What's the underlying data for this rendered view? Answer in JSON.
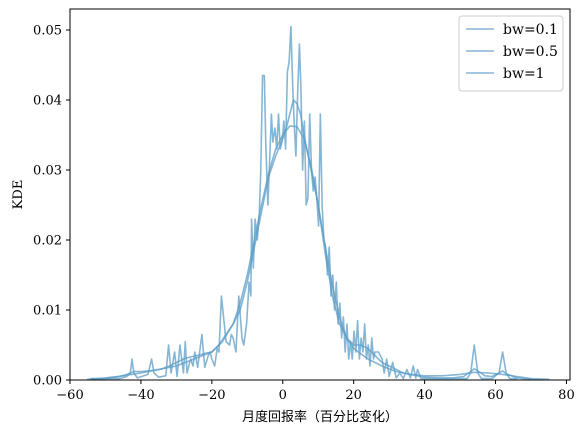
{
  "chart_data": {
    "type": "line",
    "xlabel": "月度回报率（百分比变化）",
    "ylabel": "KDE",
    "xlim": [
      -60,
      81
    ],
    "ylim": [
      0,
      0.053
    ],
    "xticks": [
      -60,
      -40,
      -20,
      0,
      20,
      40,
      60,
      80
    ],
    "yticks": [
      0.0,
      0.01,
      0.02,
      0.03,
      0.04,
      0.05
    ],
    "ytick_labels": [
      "0.00",
      "0.01",
      "0.02",
      "0.03",
      "0.04",
      "0.05"
    ],
    "legend_position": "top-right",
    "line_color": "#5d9ec7",
    "series": [
      {
        "name": "bw=0.1",
        "points": [
          [
            -54,
            0.0002
          ],
          [
            -46,
            0.0002
          ],
          [
            -44,
            0.0005
          ],
          [
            -43,
            0.001
          ],
          [
            -42.5,
            0.003
          ],
          [
            -42,
            0.001
          ],
          [
            -41,
            0.0003
          ],
          [
            -38,
            0.0008
          ],
          [
            -37,
            0.003
          ],
          [
            -36.3,
            0.001
          ],
          [
            -35,
            0.0004
          ],
          [
            -33,
            0.0006
          ],
          [
            -32.2,
            0.005
          ],
          [
            -31.5,
            0.001
          ],
          [
            -30.5,
            0.004
          ],
          [
            -29.8,
            0.0005
          ],
          [
            -29,
            0.005
          ],
          [
            -28,
            0.001
          ],
          [
            -27.5,
            0.0055
          ],
          [
            -27,
            0.001
          ],
          [
            -26,
            0.003
          ],
          [
            -25.3,
            0.002
          ],
          [
            -24.8,
            0.004
          ],
          [
            -24,
            0.0018
          ],
          [
            -22.8,
            0.0065
          ],
          [
            -22,
            0.0018
          ],
          [
            -21,
            0.0035
          ],
          [
            -20.5,
            0.004
          ],
          [
            -20,
            0.003
          ],
          [
            -19.2,
            0.002
          ],
          [
            -18.5,
            0.0045
          ],
          [
            -18,
            0.004
          ],
          [
            -17.3,
            0.012
          ],
          [
            -16.5,
            0.008
          ],
          [
            -16,
            0.0055
          ],
          [
            -15,
            0.005
          ],
          [
            -14.5,
            0.0065
          ],
          [
            -14,
            0.006
          ],
          [
            -13.2,
            0.004
          ],
          [
            -12.4,
            0.012
          ],
          [
            -11.5,
            0.006
          ],
          [
            -11,
            0.005
          ],
          [
            -10.2,
            0.008
          ],
          [
            -9.5,
            0.014
          ],
          [
            -9,
            0.012
          ],
          [
            -8.8,
            0.023
          ],
          [
            -8.3,
            0.016
          ],
          [
            -7.8,
            0.023
          ],
          [
            -7.2,
            0.02
          ],
          [
            -6.6,
            0.024
          ],
          [
            -6.2,
            0.03
          ],
          [
            -5.7,
            0.0435
          ],
          [
            -5.2,
            0.0435
          ],
          [
            -4.8,
            0.034
          ],
          [
            -4.2,
            0.025
          ],
          [
            -3.8,
            0.03
          ],
          [
            -3.2,
            0.038
          ],
          [
            -2.8,
            0.034
          ],
          [
            -2.2,
            0.036
          ],
          [
            -1.7,
            0.033
          ],
          [
            -1.2,
            0.038
          ],
          [
            -0.7,
            0.033
          ],
          [
            -0.2,
            0.034
          ],
          [
            0.3,
            0.037
          ],
          [
            0.8,
            0.033
          ],
          [
            1.3,
            0.044
          ],
          [
            1.8,
            0.0455
          ],
          [
            2.3,
            0.0505
          ],
          [
            2.8,
            0.042
          ],
          [
            3.2,
            0.037
          ],
          [
            3.7,
            0.032
          ],
          [
            4.2,
            0.041
          ],
          [
            4.7,
            0.048
          ],
          [
            5.1,
            0.042
          ],
          [
            5.6,
            0.03
          ],
          [
            6.1,
            0.037
          ],
          [
            6.6,
            0.025
          ],
          [
            7.1,
            0.026
          ],
          [
            7.6,
            0.038
          ],
          [
            8.1,
            0.03
          ],
          [
            8.6,
            0.027
          ],
          [
            9.1,
            0.029
          ],
          [
            9.6,
            0.026
          ],
          [
            10.1,
            0.022
          ],
          [
            10.6,
            0.038
          ],
          [
            11.1,
            0.025
          ],
          [
            11.6,
            0.02
          ],
          [
            12.1,
            0.019
          ],
          [
            12.6,
            0.015
          ],
          [
            13.1,
            0.019
          ],
          [
            13.6,
            0.012
          ],
          [
            14.1,
            0.015
          ],
          [
            14.6,
            0.01
          ],
          [
            15.1,
            0.014
          ],
          [
            15.6,
            0.008
          ],
          [
            16.1,
            0.011
          ],
          [
            16.6,
            0.006
          ],
          [
            17.1,
            0.009
          ],
          [
            17.6,
            0.004
          ],
          [
            18.1,
            0.008
          ],
          [
            18.6,
            0.003
          ],
          [
            19.1,
            0.0055
          ],
          [
            19.6,
            0.003
          ],
          [
            20.1,
            0.007
          ],
          [
            20.6,
            0.004
          ],
          [
            21.1,
            0.0085
          ],
          [
            21.6,
            0.003
          ],
          [
            22.1,
            0.006
          ],
          [
            22.6,
            0.004
          ],
          [
            23.1,
            0.008
          ],
          [
            23.6,
            0.003
          ],
          [
            24.1,
            0.005
          ],
          [
            24.6,
            0.002
          ],
          [
            25.1,
            0.006
          ],
          [
            25.6,
            0.003
          ],
          [
            26,
            0.004
          ],
          [
            27,
            0.004
          ],
          [
            28,
            0.003
          ],
          [
            28.6,
            0.001
          ],
          [
            29.3,
            0.003
          ],
          [
            30,
            0.0005
          ],
          [
            31,
            0.0025
          ],
          [
            32,
            0.0003
          ],
          [
            33,
            0.001
          ],
          [
            34,
            0.0002
          ],
          [
            35,
            0.0015
          ],
          [
            36,
            0.0003
          ],
          [
            36.8,
            0.002
          ],
          [
            37.5,
            0.0003
          ],
          [
            38,
            0.0015
          ],
          [
            39,
            0.0002
          ],
          [
            42,
            0.0002
          ],
          [
            47,
            0.0002
          ],
          [
            52,
            0.0002
          ],
          [
            53,
            0.001
          ],
          [
            54,
            0.005
          ],
          [
            55,
            0.001
          ],
          [
            56,
            0.0002
          ],
          [
            59,
            0.0002
          ],
          [
            61,
            0.001
          ],
          [
            62,
            0.004
          ],
          [
            63,
            0.001
          ],
          [
            64,
            0.0002
          ],
          [
            66,
            0.0002
          ]
        ]
      },
      {
        "name": "bw=0.5",
        "points": [
          [
            -54,
            0.0001
          ],
          [
            -50,
            0.0002
          ],
          [
            -46,
            0.0005
          ],
          [
            -44,
            0.0008
          ],
          [
            -42,
            0.0012
          ],
          [
            -40,
            0.0012
          ],
          [
            -38,
            0.0013
          ],
          [
            -36,
            0.0014
          ],
          [
            -34,
            0.0016
          ],
          [
            -32,
            0.002
          ],
          [
            -30,
            0.0025
          ],
          [
            -28,
            0.003
          ],
          [
            -26,
            0.0033
          ],
          [
            -24,
            0.0035
          ],
          [
            -22,
            0.0038
          ],
          [
            -20,
            0.004
          ],
          [
            -18,
            0.005
          ],
          [
            -16,
            0.0065
          ],
          [
            -14,
            0.008
          ],
          [
            -12,
            0.01
          ],
          [
            -10,
            0.014
          ],
          [
            -8,
            0.019
          ],
          [
            -6,
            0.024
          ],
          [
            -4,
            0.029
          ],
          [
            -2,
            0.032
          ],
          [
            0,
            0.0345
          ],
          [
            1,
            0.036
          ],
          [
            2,
            0.038
          ],
          [
            3,
            0.04
          ],
          [
            4,
            0.0395
          ],
          [
            5,
            0.038
          ],
          [
            6,
            0.035
          ],
          [
            8,
            0.03
          ],
          [
            10,
            0.025
          ],
          [
            12,
            0.018
          ],
          [
            14,
            0.012
          ],
          [
            16,
            0.008
          ],
          [
            18,
            0.006
          ],
          [
            20,
            0.005
          ],
          [
            22,
            0.005
          ],
          [
            24,
            0.0045
          ],
          [
            26,
            0.0035
          ],
          [
            28,
            0.0025
          ],
          [
            30,
            0.002
          ],
          [
            32,
            0.0015
          ],
          [
            34,
            0.001
          ],
          [
            36,
            0.0008
          ],
          [
            38,
            0.0006
          ],
          [
            40,
            0.0004
          ],
          [
            44,
            0.0003
          ],
          [
            48,
            0.0003
          ],
          [
            51,
            0.0005
          ],
          [
            53,
            0.0012
          ],
          [
            54,
            0.0016
          ],
          [
            55,
            0.0013
          ],
          [
            57,
            0.0006
          ],
          [
            59,
            0.0005
          ],
          [
            61,
            0.001
          ],
          [
            62,
            0.0013
          ],
          [
            63,
            0.0009
          ],
          [
            66,
            0.0003
          ],
          [
            70,
            0.0001
          ]
        ]
      },
      {
        "name": "bw=1",
        "points": [
          [
            -55,
            0.0001
          ],
          [
            -50,
            0.0003
          ],
          [
            -45,
            0.0006
          ],
          [
            -40,
            0.001
          ],
          [
            -35,
            0.0015
          ],
          [
            -30,
            0.002
          ],
          [
            -25,
            0.003
          ],
          [
            -20,
            0.004
          ],
          [
            -17,
            0.0055
          ],
          [
            -14,
            0.008
          ],
          [
            -12,
            0.011
          ],
          [
            -10,
            0.015
          ],
          [
            -8,
            0.02
          ],
          [
            -6,
            0.025
          ],
          [
            -4,
            0.0295
          ],
          [
            -2,
            0.033
          ],
          [
            0,
            0.035
          ],
          [
            2,
            0.0363
          ],
          [
            4,
            0.0362
          ],
          [
            6,
            0.0345
          ],
          [
            8,
            0.0305
          ],
          [
            10,
            0.025
          ],
          [
            12,
            0.019
          ],
          [
            14,
            0.0135
          ],
          [
            16,
            0.009
          ],
          [
            18,
            0.006
          ],
          [
            20,
            0.0045
          ],
          [
            24,
            0.003
          ],
          [
            28,
            0.002
          ],
          [
            32,
            0.0012
          ],
          [
            36,
            0.0008
          ],
          [
            40,
            0.0006
          ],
          [
            45,
            0.0006
          ],
          [
            50,
            0.0008
          ],
          [
            54,
            0.0011
          ],
          [
            58,
            0.001
          ],
          [
            62,
            0.0008
          ],
          [
            66,
            0.0005
          ],
          [
            70,
            0.0002
          ],
          [
            75,
            0.0001
          ]
        ]
      }
    ]
  }
}
